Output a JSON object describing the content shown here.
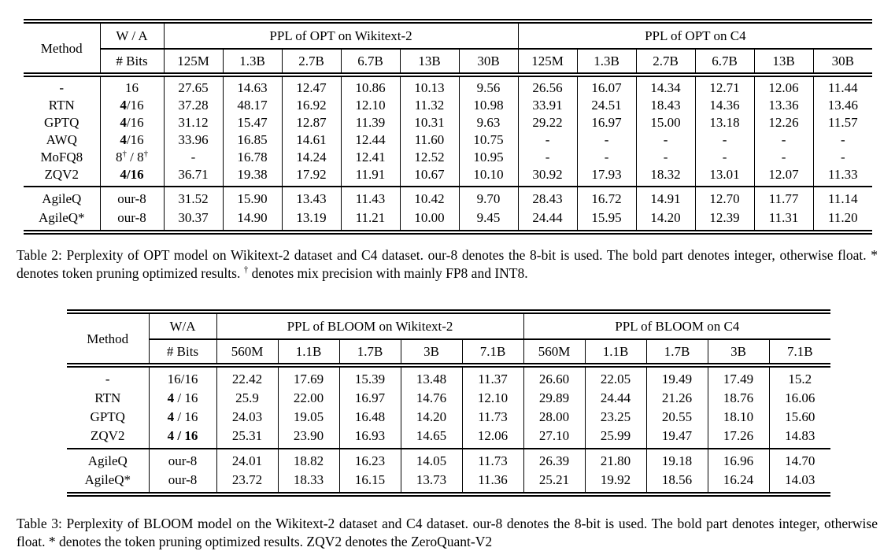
{
  "table2": {
    "header": {
      "method": "Method",
      "wa_line1": "W / A",
      "wa_line2": "# Bits",
      "group_wikitext": "PPL of OPT on Wikitext-2",
      "group_c4": "PPL of OPT on C4",
      "sizes": [
        "125M",
        "1.3B",
        "2.7B",
        "6.7B",
        "13B",
        "30B"
      ]
    },
    "main_rows": [
      {
        "method": "-",
        "wa": [
          {
            "t": "16"
          }
        ],
        "values": [
          "27.65",
          "14.63",
          "12.47",
          "10.86",
          "10.13",
          "9.56",
          "26.56",
          "16.07",
          "14.34",
          "12.71",
          "12.06",
          "11.44"
        ]
      },
      {
        "method": "RTN",
        "wa": [
          {
            "t": "4",
            "b": true
          },
          {
            "t": "/16"
          }
        ],
        "values": [
          "37.28",
          "48.17",
          "16.92",
          "12.10",
          "11.32",
          "10.98",
          "33.91",
          "24.51",
          "18.43",
          "14.36",
          "13.36",
          "13.46"
        ]
      },
      {
        "method": "GPTQ",
        "wa": [
          {
            "t": "4",
            "b": true
          },
          {
            "t": "/16"
          }
        ],
        "values": [
          "31.12",
          "15.47",
          "12.87",
          "11.39",
          "10.31",
          "9.63",
          "29.22",
          "16.97",
          "15.00",
          "13.18",
          "12.26",
          "11.57"
        ]
      },
      {
        "method": "AWQ",
        "wa": [
          {
            "t": "4",
            "b": true
          },
          {
            "t": "/16"
          }
        ],
        "values": [
          "33.96",
          "16.85",
          "14.61",
          "12.44",
          "11.60",
          "10.75",
          "-",
          "-",
          "-",
          "-",
          "-",
          "-"
        ]
      },
      {
        "method": "MoFQ8",
        "wa": [
          {
            "t": "8"
          },
          {
            "t": "†",
            "sup": true
          },
          {
            "t": " / 8"
          },
          {
            "t": "†",
            "sup": true
          }
        ],
        "values": [
          "-",
          "16.78",
          "14.24",
          "12.41",
          "12.52",
          "10.95",
          "-",
          "-",
          "-",
          "-",
          "-",
          "-"
        ]
      },
      {
        "method": "ZQV2",
        "wa": [
          {
            "t": "4/16",
            "b": true
          }
        ],
        "values": [
          "36.71",
          "19.38",
          "17.92",
          "11.91",
          "10.67",
          "10.10",
          "30.92",
          "17.93",
          "18.32",
          "13.01",
          "12.07",
          "11.33"
        ]
      }
    ],
    "our_rows": [
      {
        "method": "AgileQ",
        "wa": [
          {
            "t": "our-8"
          }
        ],
        "values": [
          "31.52",
          "15.90",
          "13.43",
          "11.43",
          "10.42",
          "9.70",
          "28.43",
          "16.72",
          "14.91",
          "12.70",
          "11.77",
          "11.14"
        ]
      },
      {
        "method": "AgileQ*",
        "wa": [
          {
            "t": "our-8"
          }
        ],
        "values": [
          "30.37",
          "14.90",
          "13.19",
          "11.21",
          "10.00",
          "9.45",
          "24.44",
          "15.95",
          "14.20",
          "12.39",
          "11.31",
          "11.20"
        ]
      }
    ],
    "caption": [
      {
        "t": "Table 2: Perplexity of OPT model on Wikitext-2 dataset and C4 dataset. our-8 denotes the 8-bit is used. The bold part denotes integer, otherwise float. * denotes token pruning optimized results. "
      },
      {
        "t": "†",
        "sup": true
      },
      {
        "t": " denotes mix precision with mainly FP8 and INT8."
      }
    ]
  },
  "table3": {
    "header": {
      "method": "Method",
      "wa_line1": "W/A",
      "wa_line2": "# Bits",
      "group_wikitext": "PPL of BLOOM on Wikitext-2",
      "group_c4": "PPL of BLOOM on C4",
      "sizes": [
        "560M",
        "1.1B",
        "1.7B",
        "3B",
        "7.1B"
      ]
    },
    "main_rows": [
      {
        "method": "-",
        "wa": [
          {
            "t": "16/16"
          }
        ],
        "values": [
          "22.42",
          "17.69",
          "15.39",
          "13.48",
          "11.37",
          "26.60",
          "22.05",
          "19.49",
          "17.49",
          "15.2"
        ]
      },
      {
        "method": "RTN",
        "wa": [
          {
            "t": "4",
            "b": true
          },
          {
            "t": " / 16"
          }
        ],
        "values": [
          "25.9",
          "22.00",
          "16.97",
          "14.76",
          "12.10",
          "29.89",
          "24.44",
          "21.26",
          "18.76",
          "16.06"
        ]
      },
      {
        "method": "GPTQ",
        "wa": [
          {
            "t": "4",
            "b": true
          },
          {
            "t": " / 16"
          }
        ],
        "values": [
          "24.03",
          "19.05",
          "16.48",
          "14.20",
          "11.73",
          "28.00",
          "23.25",
          "20.55",
          "18.10",
          "15.60"
        ]
      },
      {
        "method": "ZQV2",
        "wa": [
          {
            "t": "4 / 16",
            "b": true
          }
        ],
        "values": [
          "25.31",
          "23.90",
          "16.93",
          "14.65",
          "12.06",
          "27.10",
          "25.99",
          "19.47",
          "17.26",
          "14.83"
        ]
      }
    ],
    "our_rows": [
      {
        "method": "AgileQ",
        "wa": [
          {
            "t": "our-8"
          }
        ],
        "values": [
          "24.01",
          "18.82",
          "16.23",
          "14.05",
          "11.73",
          "26.39",
          "21.80",
          "19.18",
          "16.96",
          "14.70"
        ]
      },
      {
        "method": "AgileQ*",
        "wa": [
          {
            "t": "our-8"
          }
        ],
        "values": [
          "23.72",
          "18.33",
          "16.15",
          "13.73",
          "11.36",
          "25.21",
          "19.92",
          "18.56",
          "16.24",
          "14.03"
        ]
      }
    ],
    "caption": [
      {
        "t": "Table 3: Perplexity of BLOOM model on the Wikitext-2 dataset and C4 dataset. our-8 denotes the 8-bit is used. The bold part denotes integer, otherwise float. * denotes the token pruning optimized results. ZQV2 denotes the ZeroQuant-V2"
      }
    ]
  }
}
